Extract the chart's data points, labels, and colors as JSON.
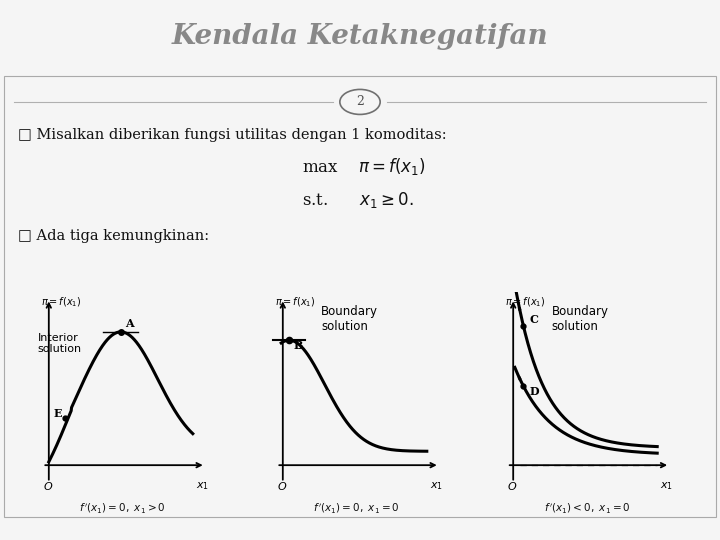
{
  "title": "Kendala Ketaknegatifan",
  "slide_number": "2",
  "title_bg": "#0a0a0a",
  "title_color": "#888888",
  "bg_color": "#f5f5f5",
  "footer_color": "#7a9fb0",
  "bullet1": "□ Misalkan diberikan fungsi utilitas dengan 1 komoditas:",
  "bullet2": "□ Ada tiga kemungkinan:",
  "graph1_label": "Interior\nsolution",
  "graph2_label": "Boundary\nsolution",
  "graph3_label": "Boundary\nsolution",
  "graph1_eq": "$f\\,'(x_1) = 0,\\ x_1 > 0$",
  "graph2_eq": "$f\\,'(x_1) = 0,\\ x_1 = 0$",
  "graph3_eq": "$f\\,'(x_1) < 0,\\ x_1 = 0$",
  "graph1_title": "$\\pi = f(x_1)$",
  "graph2_title": "$\\pi = f(x_1)$",
  "graph3_title": "$\\pi = f(x_1)$"
}
